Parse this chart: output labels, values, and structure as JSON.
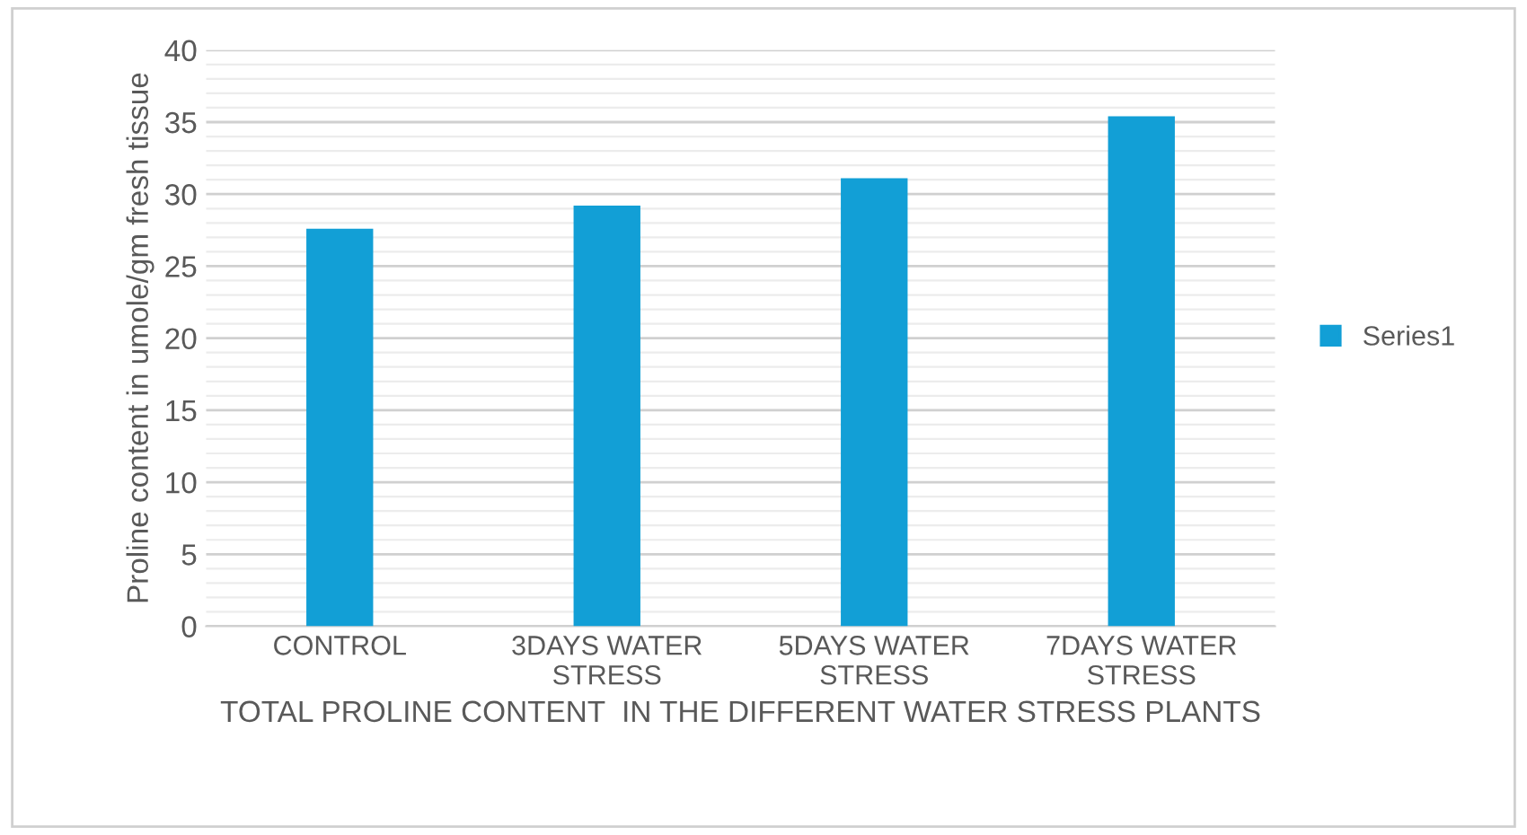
{
  "chart_data": {
    "type": "bar",
    "xlabel": "TOTAL PROLINE CONTENT  IN THE DIFFERENT WATER STRESS PLANTS",
    "ylabel": "Proline content in umole/gm fresh tissue",
    "categories": [
      "CONTROL",
      "3DAYS WATER STRESS",
      "5DAYS WATER STRESS",
      "7DAYS WATER STRESS"
    ],
    "series": [
      {
        "name": "Series1",
        "color": "#129fd6",
        "values": [
          27.6,
          29.2,
          31.1,
          35.4
        ]
      }
    ],
    "ylim": [
      0,
      40
    ],
    "yticks": [
      0,
      5,
      10,
      15,
      20,
      25,
      30,
      35,
      40
    ],
    "grid": "y",
    "legend": "right"
  }
}
